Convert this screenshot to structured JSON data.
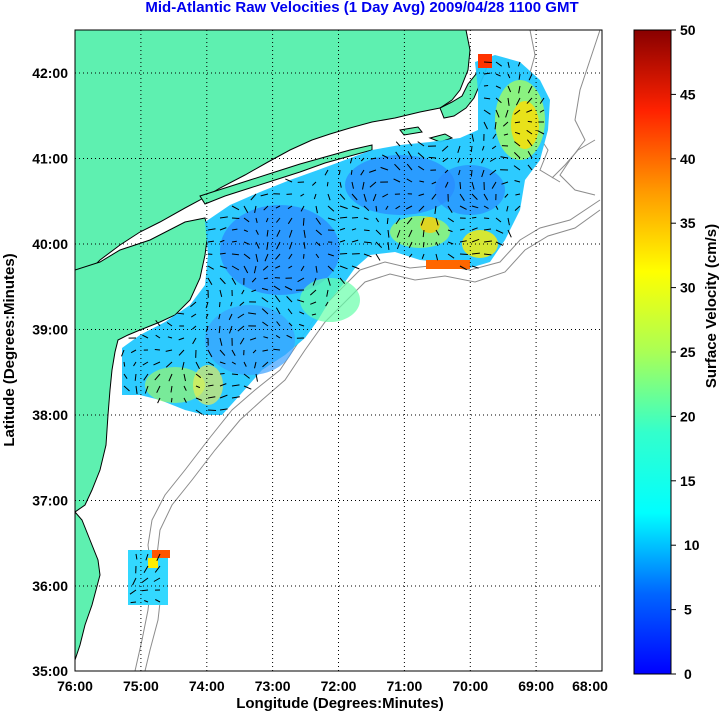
{
  "title": "Mid-Atlantic Raw Velocities (1 Day Avg) 2009/04/28 1100 GMT",
  "map": {
    "x_ticks": [
      "76:00",
      "75:00",
      "74:00",
      "73:00",
      "72:00",
      "71:00",
      "70:00",
      "69:00",
      "68:00"
    ],
    "y_ticks": [
      "42:00",
      "41:00",
      "40:00",
      "39:00",
      "38:00",
      "37:00",
      "36:00",
      "35:00"
    ],
    "xlabel": "Longitude (Degrees:Minutes)",
    "ylabel": "Latitude (Degrees:Minutes)",
    "lon_range": [
      -76,
      -68
    ],
    "lat_range": [
      35,
      42.5
    ],
    "grid": "dotted",
    "land_color": "#5ef0b0",
    "ocean_color": "#ffffff",
    "bathymetry_color": "#8c8c8c"
  },
  "colorbar": {
    "label": "Surface Velocity (cm/s)",
    "ticks": [
      "50",
      "45",
      "40",
      "35",
      "30",
      "25",
      "20",
      "15",
      "10",
      "5",
      "0"
    ],
    "range": [
      0,
      50
    ],
    "colormap": "jet"
  }
}
